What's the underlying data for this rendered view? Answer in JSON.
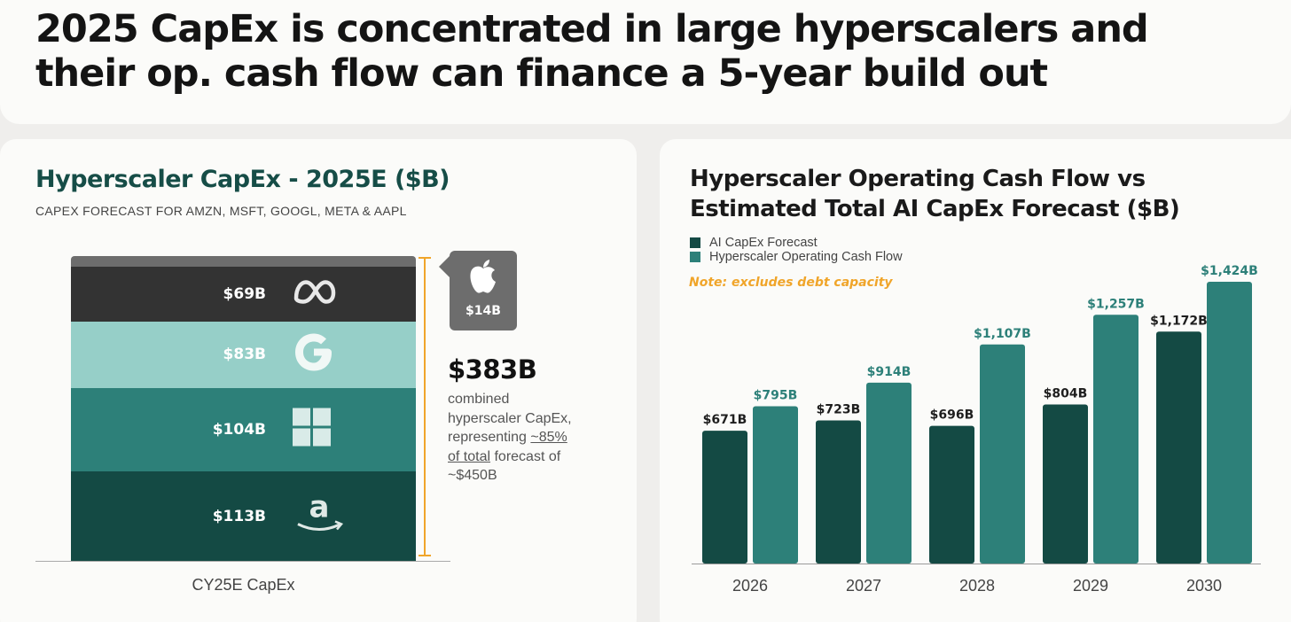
{
  "header": {
    "title_line1": "2025 CapEx is concentrated in large hyperscalers and",
    "title_line2": "their op. cash flow can finance a 5-year build out"
  },
  "left_panel": {
    "title": "Hyperscaler CapEx - 2025E ($B)",
    "subtitle": "CAPEX FORECAST FOR AMZN, MSFT, GOOGL, META & AAPL",
    "x_label": "CY25E CapEx",
    "total_value": "$383B",
    "desc_1": "combined",
    "desc_2": "hyperscaler CapEx,",
    "desc_3": "representing",
    "desc_4": "~85%",
    "desc_5": "of total",
    "desc_6": "forecast of",
    "desc_7": "~$450B",
    "apple_label": "$14B"
  },
  "right_panel": {
    "title_line1": "Hyperscaler Operating Cash Flow vs",
    "title_line2": "Estimated Total AI CapEx Forecast ($B)",
    "note": "Note: excludes debt capacity"
  },
  "chart_data": [
    {
      "type": "bar",
      "stacked": true,
      "title": "Hyperscaler CapEx - 2025E ($B)",
      "categories": [
        "CY25E CapEx"
      ],
      "series": [
        {
          "name": "AMZN",
          "icon": "amazon-logo-icon",
          "value": 113,
          "label": "$113B",
          "color": "#144a44"
        },
        {
          "name": "MSFT",
          "icon": "windows-logo-icon",
          "value": 104,
          "label": "$104B",
          "color": "#2d8079"
        },
        {
          "name": "GOOGL",
          "icon": "google-logo-icon",
          "value": 83,
          "label": "$83B",
          "color": "#96cfc8"
        },
        {
          "name": "META",
          "icon": "meta-logo-icon",
          "value": 69,
          "label": "$69B",
          "color": "#333333"
        },
        {
          "name": "AAPL",
          "icon": "apple-logo-icon",
          "value": 14,
          "label": "$14B",
          "color": "#6d6d6d"
        }
      ],
      "total": 383
    },
    {
      "type": "bar",
      "title": "Hyperscaler Operating Cash Flow vs Estimated Total AI CapEx Forecast ($B)",
      "categories": [
        "2026",
        "2027",
        "2028",
        "2029",
        "2030"
      ],
      "series": [
        {
          "name": "AI CapEx Forecast",
          "color": "#144a44",
          "values": [
            671,
            723,
            696,
            804,
            1172
          ],
          "labels": [
            "$671B",
            "$723B",
            "$696B",
            "$804B",
            "$1,172B"
          ]
        },
        {
          "name": "Hyperscaler Operating Cash Flow",
          "color": "#2d8079",
          "values": [
            795,
            914,
            1107,
            1257,
            1424
          ],
          "labels": [
            "$795B",
            "$914B",
            "$1,107B",
            "$1,257B",
            "$1,424B"
          ]
        }
      ],
      "ylim": [
        0,
        1470
      ],
      "legend": "top-left"
    }
  ]
}
